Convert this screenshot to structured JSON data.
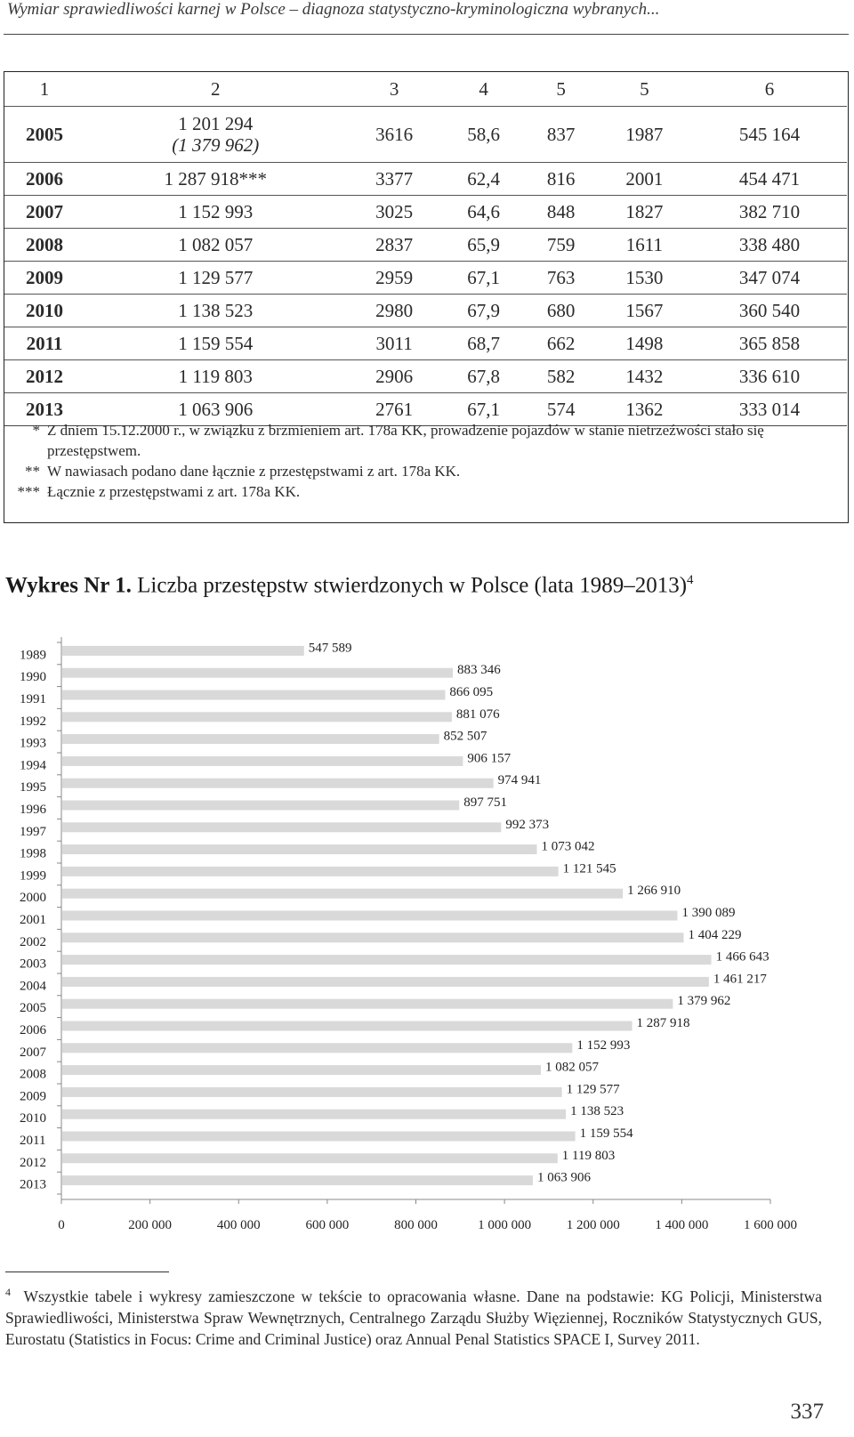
{
  "header": {
    "running_title": "Wymiar sprawiedliwości karnej w Polsce – diagnoza statystyczno-kryminologiczna wybranych..."
  },
  "table": {
    "columns": [
      "1",
      "2",
      "3",
      "4",
      "5",
      "5",
      "6"
    ],
    "rows": [
      {
        "year": "2005",
        "c2": "1 201 294",
        "c2b": "(1 379 962)",
        "c3": "3616",
        "c4": "58,6",
        "c5": "837",
        "c5b": "1987",
        "c6": "545 164"
      },
      {
        "year": "2006",
        "c2": "1 287 918***",
        "c3": "3377",
        "c4": "62,4",
        "c5": "816",
        "c5b": "2001",
        "c6": "454 471"
      },
      {
        "year": "2007",
        "c2": "1 152 993",
        "c3": "3025",
        "c4": "64,6",
        "c5": "848",
        "c5b": "1827",
        "c6": "382 710"
      },
      {
        "year": "2008",
        "c2": "1 082 057",
        "c3": "2837",
        "c4": "65,9",
        "c5": "759",
        "c5b": "1611",
        "c6": "338 480"
      },
      {
        "year": "2009",
        "c2": "1 129 577",
        "c3": "2959",
        "c4": "67,1",
        "c5": "763",
        "c5b": "1530",
        "c6": "347 074"
      },
      {
        "year": "2010",
        "c2": "1 138 523",
        "c3": "2980",
        "c4": "67,9",
        "c5": "680",
        "c5b": "1567",
        "c6": "360 540"
      },
      {
        "year": "2011",
        "c2": "1 159 554",
        "c3": "3011",
        "c4": "68,7",
        "c5": "662",
        "c5b": "1498",
        "c6": "365 858"
      },
      {
        "year": "2012",
        "c2": "1 119 803",
        "c3": "2906",
        "c4": "67,8",
        "c5": "582",
        "c5b": "1432",
        "c6": "336 610"
      },
      {
        "year": "2013",
        "c2": "1 063 906",
        "c3": "2761",
        "c4": "67,1",
        "c5": "574",
        "c5b": "1362",
        "c6": "333 014"
      }
    ],
    "notes": [
      {
        "mark": "*",
        "text": "Z dniem 15.12.2000 r., w związku z brzmieniem art. 178a KK, prowadzenie pojazdów w stanie nietrzeźwości stało się przestępstwem."
      },
      {
        "mark": "**",
        "text": "W nawiasach podano dane łącznie z przestępstwami z art. 178a KK."
      },
      {
        "mark": "***",
        "text": "Łącznie z przestępstwami z art. 178a KK."
      }
    ]
  },
  "chart_title": {
    "label": "Wykres Nr 1.",
    "text": "Liczba przestępstw stwierdzonych w Polsce (lata 1989–2013)",
    "footnote_ref": "4"
  },
  "chart_data": {
    "type": "bar",
    "orientation": "horizontal",
    "categories": [
      "1989",
      "1990",
      "1991",
      "1992",
      "1993",
      "1994",
      "1995",
      "1996",
      "1997",
      "1998",
      "1999",
      "2000",
      "2001",
      "2002",
      "2003",
      "2004",
      "2005",
      "2006",
      "2007",
      "2008",
      "2009",
      "2010",
      "2011",
      "2012",
      "2013"
    ],
    "values": [
      547589,
      883346,
      866095,
      881076,
      852507,
      906157,
      974941,
      897751,
      992373,
      1073042,
      1121545,
      1266910,
      1390089,
      1404229,
      1466643,
      1461217,
      1379962,
      1287918,
      1152993,
      1082057,
      1129577,
      1138523,
      1159554,
      1119803,
      1063906
    ],
    "value_labels": [
      "547 589",
      "883 346",
      "866 095",
      "881 076",
      "852 507",
      "906 157",
      "974 941",
      "897 751",
      "992 373",
      "1 073 042",
      "1 121 545",
      "1 266 910",
      "1 390 089",
      "1 404 229",
      "1 466 643",
      "1 461 217",
      "1 379 962",
      "1 287 918",
      "1 152 993",
      "1 082 057",
      "1 129 577",
      "1 138 523",
      "1 159 554",
      "1 119 803",
      "1 063 906"
    ],
    "xticks": [
      0,
      200000,
      400000,
      600000,
      800000,
      1000000,
      1200000,
      1400000,
      1600000
    ],
    "xtick_labels": [
      "0",
      "200 000",
      "400 000",
      "600 000",
      "800 000",
      "1 000 000",
      "1 200 000",
      "1 400 000",
      "1 600 000"
    ],
    "xlim": [
      0,
      1600000
    ],
    "bar_color": "#d9d9d9",
    "grid": false,
    "legend": "none"
  },
  "footnote": {
    "number": "4",
    "text": "Wszystkie tabele i wykresy zamieszczone w tekście to opracowania własne. Dane na podstawie: KG Policji, Ministerstwa Sprawiedliwości, Ministerstwa Spraw Wewnętrznych, Centralnego Zarządu Służby Więziennej, Roczników Statystycznych GUS, Eurostatu (Statistics in Focus: Crime and Criminal Justice) oraz Annual Penal Statistics SPACE I, Survey 2011."
  },
  "page_number": "337"
}
